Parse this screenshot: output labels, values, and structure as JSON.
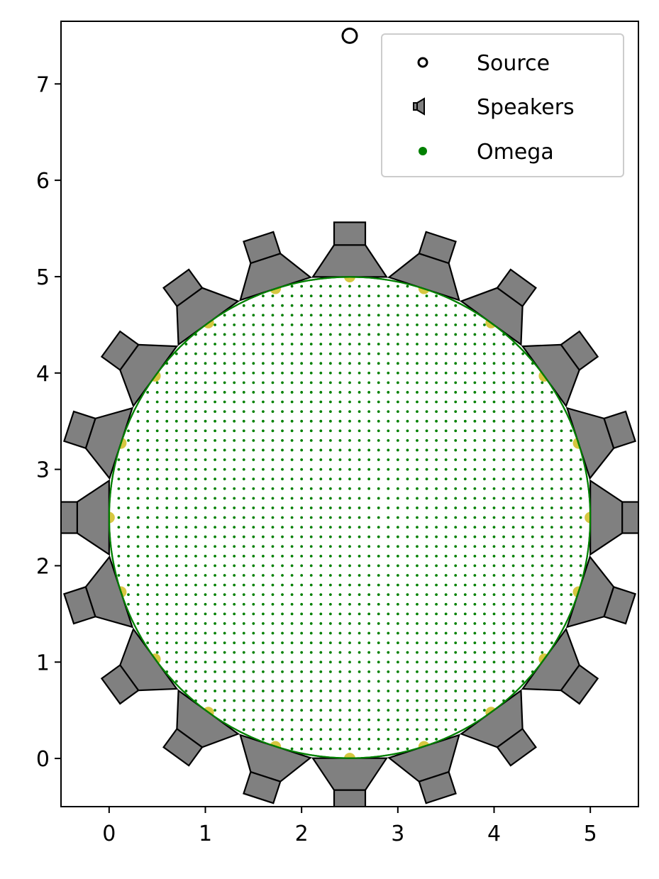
{
  "chart_data": {
    "type": "scatter",
    "title": "",
    "xlabel": "",
    "ylabel": "",
    "xlim": [
      -0.5,
      5.5
    ],
    "ylim": [
      -0.5,
      7.65
    ],
    "x_ticks": [
      0,
      1,
      2,
      3,
      4,
      5
    ],
    "y_ticks": [
      0,
      1,
      2,
      3,
      4,
      5,
      6,
      7
    ],
    "grid": false,
    "legend": {
      "position": "top-right",
      "entries": [
        {
          "label": "Source",
          "marker": "open-circle",
          "color": "#000000"
        },
        {
          "label": "Speakers",
          "marker": "speaker",
          "color": "#808080"
        },
        {
          "label": "Omega",
          "marker": "dot",
          "color": "#008000"
        }
      ]
    },
    "source": {
      "x": 2.5,
      "y": 7.5
    },
    "speakers": {
      "count": 20,
      "center": [
        2.5,
        2.5
      ],
      "radius": 2.5,
      "angle_step_deg": 18,
      "color": "#808080",
      "edge_color": "#000000"
    },
    "speaker_positions_marker_color": "#c8b400",
    "omega": {
      "center": [
        2.5,
        2.5
      ],
      "radius": 2.5,
      "grid_step": 0.1,
      "point_color": "#008000",
      "boundary_color": "#008000"
    }
  }
}
